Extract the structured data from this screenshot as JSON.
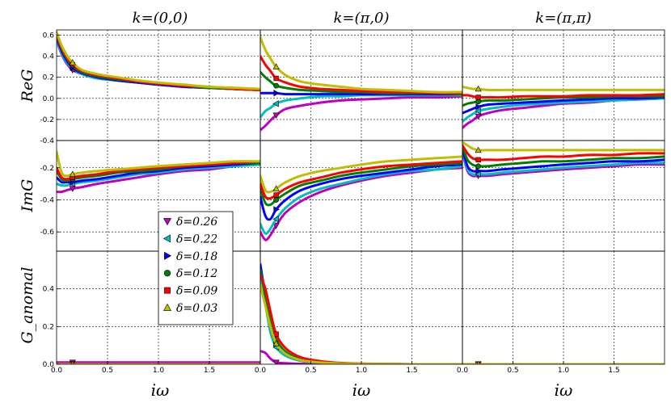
{
  "chart_data": {
    "type": "line",
    "description_units": "data units",
    "column_titles": [
      "k=(0,0)",
      "k=(π,0)",
      "k=(π,π)"
    ],
    "row_ylabels": [
      "ReG",
      "ImG",
      "G_anomal"
    ],
    "xlabel": "iω",
    "xlim": [
      0.0,
      2.0
    ],
    "xticks": [
      0.0,
      0.5,
      1.0,
      1.5
    ],
    "xtick_labels": [
      "0.0",
      "0.5",
      "1.0",
      "1.5"
    ],
    "rows": [
      {
        "name": "ReG",
        "ylim": [
          -0.4,
          0.65
        ],
        "yticks": [
          -0.4,
          -0.2,
          0.0,
          0.2,
          0.4,
          0.6
        ],
        "ytick_labels": [
          "-0.4",
          "-0.2",
          "0.0",
          "0.2",
          "0.4",
          "0.6"
        ]
      },
      {
        "name": "ImG",
        "ylim": [
          -0.72,
          -0.03
        ],
        "yticks": [
          -0.6,
          -0.4,
          -0.2
        ],
        "ytick_labels": [
          "-0.6",
          "-0.4",
          "-0.2"
        ]
      },
      {
        "name": "G_anomal",
        "ylim": [
          0.0,
          0.6
        ],
        "yticks": [
          0.0,
          0.2,
          0.4
        ],
        "ytick_labels": [
          "0.0",
          "0.2",
          "0.4"
        ]
      }
    ],
    "legend": {
      "position": "left, middle",
      "entries": [
        {
          "label": "δ=0.26",
          "color": "#bf00bf",
          "marker": "triangle-down"
        },
        {
          "label": "δ=0.22",
          "color": "#00bfbf",
          "marker": "triangle-left"
        },
        {
          "label": "δ=0.18",
          "color": "#0000ff",
          "marker": "triangle-right"
        },
        {
          "label": "δ=0.12",
          "color": "#008000",
          "marker": "circle"
        },
        {
          "label": "δ=0.09",
          "color": "#ff0000",
          "marker": "square"
        },
        {
          "label": "δ=0.03",
          "color": "#bfbf00",
          "marker": "triangle-up"
        }
      ]
    },
    "marker_x": 0.157,
    "x": [
      0.0,
      0.05,
      0.1,
      0.157,
      0.25,
      0.4,
      0.6,
      0.8,
      1.0,
      1.25,
      1.5,
      1.75,
      2.0
    ],
    "panels": [
      {
        "row": 0,
        "col": 0,
        "series": [
          [
            0.55,
            0.42,
            0.33,
            0.27,
            0.23,
            0.19,
            0.17,
            0.15,
            0.13,
            0.11,
            0.1,
            0.09,
            0.08
          ],
          [
            0.56,
            0.43,
            0.34,
            0.28,
            0.23,
            0.19,
            0.17,
            0.15,
            0.13,
            0.11,
            0.1,
            0.09,
            0.08
          ],
          [
            0.58,
            0.45,
            0.36,
            0.29,
            0.24,
            0.2,
            0.17,
            0.15,
            0.13,
            0.11,
            0.1,
            0.09,
            0.08
          ],
          [
            0.6,
            0.47,
            0.38,
            0.31,
            0.25,
            0.21,
            0.18,
            0.16,
            0.14,
            0.12,
            0.1,
            0.09,
            0.08
          ],
          [
            0.61,
            0.48,
            0.39,
            0.32,
            0.26,
            0.22,
            0.19,
            0.16,
            0.14,
            0.12,
            0.11,
            0.09,
            0.08
          ],
          [
            0.63,
            0.5,
            0.41,
            0.34,
            0.27,
            0.23,
            0.2,
            0.17,
            0.15,
            0.13,
            0.11,
            0.1,
            0.09
          ]
        ]
      },
      {
        "row": 0,
        "col": 1,
        "series": [
          [
            -0.3,
            -0.26,
            -0.21,
            -0.16,
            -0.1,
            -0.07,
            -0.04,
            -0.02,
            -0.01,
            0.0,
            0.01,
            0.01,
            0.02
          ],
          [
            -0.18,
            -0.12,
            -0.09,
            -0.05,
            -0.02,
            0.0,
            0.02,
            0.02,
            0.03,
            0.03,
            0.03,
            0.03,
            0.03
          ],
          [
            0.05,
            0.05,
            0.05,
            0.05,
            0.04,
            0.04,
            0.04,
            0.04,
            0.04,
            0.04,
            0.04,
            0.04,
            0.04
          ],
          [
            0.25,
            0.2,
            0.16,
            0.12,
            0.1,
            0.08,
            0.07,
            0.06,
            0.06,
            0.05,
            0.05,
            0.05,
            0.04
          ],
          [
            0.4,
            0.32,
            0.26,
            0.19,
            0.15,
            0.11,
            0.09,
            0.08,
            0.07,
            0.06,
            0.06,
            0.05,
            0.05
          ],
          [
            0.58,
            0.46,
            0.38,
            0.3,
            0.22,
            0.16,
            0.13,
            0.11,
            0.09,
            0.08,
            0.07,
            0.06,
            0.06
          ]
        ]
      },
      {
        "row": 0,
        "col": 2,
        "series": [
          [
            -0.28,
            -0.24,
            -0.21,
            -0.17,
            -0.14,
            -0.11,
            -0.09,
            -0.07,
            -0.05,
            -0.04,
            -0.02,
            -0.01,
            0.0
          ],
          [
            -0.22,
            -0.18,
            -0.15,
            -0.12,
            -0.1,
            -0.08,
            -0.06,
            -0.05,
            -0.04,
            -0.03,
            -0.02,
            -0.01,
            0.0
          ],
          [
            -0.14,
            -0.12,
            -0.1,
            -0.08,
            -0.06,
            -0.05,
            -0.04,
            -0.03,
            -0.02,
            -0.01,
            0.0,
            0.0,
            0.01
          ],
          [
            -0.07,
            -0.05,
            -0.04,
            -0.03,
            -0.02,
            -0.02,
            -0.01,
            0.0,
            0.01,
            0.01,
            0.02,
            0.02,
            0.02
          ],
          [
            0.03,
            0.03,
            0.02,
            0.01,
            0.01,
            0.01,
            0.02,
            0.02,
            0.02,
            0.03,
            0.03,
            0.03,
            0.04
          ],
          [
            0.11,
            0.1,
            0.09,
            0.09,
            0.08,
            0.08,
            0.08,
            0.08,
            0.08,
            0.08,
            0.08,
            0.08,
            0.08
          ]
        ]
      },
      {
        "row": 1,
        "col": 0,
        "series": [
          [
            -0.35,
            -0.35,
            -0.34,
            -0.33,
            -0.32,
            -0.3,
            -0.28,
            -0.26,
            -0.24,
            -0.22,
            -0.21,
            -0.19,
            -0.18
          ],
          [
            -0.3,
            -0.31,
            -0.31,
            -0.3,
            -0.29,
            -0.28,
            -0.26,
            -0.24,
            -0.23,
            -0.21,
            -0.2,
            -0.19,
            -0.18
          ],
          [
            -0.26,
            -0.29,
            -0.29,
            -0.29,
            -0.28,
            -0.27,
            -0.25,
            -0.23,
            -0.22,
            -0.2,
            -0.19,
            -0.18,
            -0.17
          ],
          [
            -0.22,
            -0.27,
            -0.28,
            -0.27,
            -0.26,
            -0.25,
            -0.23,
            -0.22,
            -0.21,
            -0.19,
            -0.18,
            -0.17,
            -0.17
          ],
          [
            -0.2,
            -0.26,
            -0.27,
            -0.26,
            -0.25,
            -0.24,
            -0.22,
            -0.21,
            -0.2,
            -0.19,
            -0.18,
            -0.17,
            -0.16
          ],
          [
            -0.1,
            -0.23,
            -0.25,
            -0.24,
            -0.23,
            -0.22,
            -0.21,
            -0.2,
            -0.19,
            -0.18,
            -0.17,
            -0.16,
            -0.16
          ]
        ]
      },
      {
        "row": 1,
        "col": 1,
        "series": [
          [
            -0.6,
            -0.65,
            -0.62,
            -0.56,
            -0.48,
            -0.41,
            -0.35,
            -0.31,
            -0.28,
            -0.25,
            -0.23,
            -0.21,
            -0.2
          ],
          [
            -0.55,
            -0.61,
            -0.58,
            -0.52,
            -0.45,
            -0.38,
            -0.33,
            -0.3,
            -0.27,
            -0.24,
            -0.22,
            -0.21,
            -0.19
          ],
          [
            -0.38,
            -0.5,
            -0.52,
            -0.46,
            -0.4,
            -0.34,
            -0.3,
            -0.27,
            -0.25,
            -0.23,
            -0.21,
            -0.19,
            -0.18
          ],
          [
            -0.33,
            -0.42,
            -0.43,
            -0.4,
            -0.36,
            -0.31,
            -0.28,
            -0.25,
            -0.23,
            -0.21,
            -0.19,
            -0.18,
            -0.17
          ],
          [
            -0.3,
            -0.38,
            -0.39,
            -0.37,
            -0.33,
            -0.29,
            -0.26,
            -0.23,
            -0.21,
            -0.19,
            -0.18,
            -0.17,
            -0.16
          ],
          [
            -0.25,
            -0.34,
            -0.35,
            -0.33,
            -0.29,
            -0.25,
            -0.22,
            -0.2,
            -0.18,
            -0.16,
            -0.15,
            -0.14,
            -0.13
          ]
        ]
      },
      {
        "row": 1,
        "col": 2,
        "series": [
          [
            -0.1,
            -0.22,
            -0.25,
            -0.25,
            -0.25,
            -0.24,
            -0.23,
            -0.22,
            -0.21,
            -0.2,
            -0.19,
            -0.18,
            -0.18
          ],
          [
            -0.09,
            -0.21,
            -0.24,
            -0.24,
            -0.24,
            -0.23,
            -0.22,
            -0.21,
            -0.2,
            -0.19,
            -0.18,
            -0.17,
            -0.17
          ],
          [
            -0.08,
            -0.19,
            -0.22,
            -0.22,
            -0.22,
            -0.21,
            -0.2,
            -0.19,
            -0.18,
            -0.17,
            -0.16,
            -0.16,
            -0.15
          ],
          [
            -0.07,
            -0.15,
            -0.18,
            -0.19,
            -0.19,
            -0.18,
            -0.17,
            -0.16,
            -0.16,
            -0.15,
            -0.14,
            -0.14,
            -0.13
          ],
          [
            -0.06,
            -0.11,
            -0.14,
            -0.15,
            -0.15,
            -0.15,
            -0.14,
            -0.13,
            -0.13,
            -0.12,
            -0.12,
            -0.11,
            -0.11
          ],
          [
            -0.04,
            -0.06,
            -0.08,
            -0.09,
            -0.09,
            -0.09,
            -0.09,
            -0.09,
            -0.09,
            -0.09,
            -0.09,
            -0.09,
            -0.09
          ]
        ]
      },
      {
        "row": 2,
        "col": 0,
        "series": [
          [
            0.01,
            0.01,
            0.01,
            0.01,
            0.01,
            0.01,
            0.01,
            0.01,
            0.01,
            0.01,
            0.01,
            0.01,
            0.01
          ],
          [
            0.0,
            0.0,
            0.0,
            0.0,
            0.0,
            0.0,
            0.0,
            0.0,
            0.0,
            0.0,
            0.0,
            0.0,
            0.0
          ],
          [
            0.0,
            0.0,
            0.0,
            0.0,
            0.0,
            0.0,
            0.0,
            0.0,
            0.0,
            0.0,
            0.0,
            0.0,
            0.0
          ],
          [
            0.0,
            0.0,
            0.0,
            0.0,
            0.0,
            0.0,
            0.0,
            0.0,
            0.0,
            0.0,
            0.0,
            0.0,
            0.0
          ],
          [
            0.0,
            0.0,
            0.0,
            0.0,
            0.0,
            0.0,
            0.0,
            0.0,
            0.0,
            0.0,
            0.0,
            0.0,
            0.0
          ],
          [
            0.0,
            0.0,
            0.0,
            0.0,
            0.0,
            0.0,
            0.0,
            0.0,
            0.0,
            0.0,
            0.0,
            0.0,
            0.0
          ]
        ]
      },
      {
        "row": 2,
        "col": 1,
        "series": [
          [
            0.07,
            0.06,
            0.03,
            0.01,
            0.005,
            0.002,
            0.001,
            0.0,
            0.0,
            0.0,
            0.0,
            0.0,
            0.0
          ],
          [
            0.48,
            0.32,
            0.17,
            0.09,
            0.045,
            0.018,
            0.007,
            0.003,
            0.001,
            0.0,
            0.0,
            0.0,
            0.0
          ],
          [
            0.53,
            0.36,
            0.2,
            0.11,
            0.055,
            0.022,
            0.009,
            0.004,
            0.002,
            0.001,
            0.0,
            0.0,
            0.0
          ],
          [
            0.5,
            0.37,
            0.23,
            0.13,
            0.066,
            0.027,
            0.011,
            0.005,
            0.002,
            0.001,
            0.0,
            0.0,
            0.0
          ],
          [
            0.47,
            0.4,
            0.28,
            0.16,
            0.085,
            0.037,
            0.016,
            0.007,
            0.003,
            0.001,
            0.0,
            0.0,
            0.0
          ],
          [
            0.42,
            0.31,
            0.2,
            0.11,
            0.055,
            0.022,
            0.009,
            0.004,
            0.002,
            0.001,
            0.0,
            0.0,
            0.0
          ]
        ]
      },
      {
        "row": 2,
        "col": 2,
        "series": [
          [
            0.0,
            0.0,
            0.0,
            0.0,
            0.0,
            0.0,
            0.0,
            0.0,
            0.0,
            0.0,
            0.0,
            0.0,
            0.0
          ],
          [
            0.0,
            0.0,
            0.0,
            0.0,
            0.0,
            0.0,
            0.0,
            0.0,
            0.0,
            0.0,
            0.0,
            0.0,
            0.0
          ],
          [
            0.0,
            0.0,
            0.0,
            0.0,
            0.0,
            0.0,
            0.0,
            0.0,
            0.0,
            0.0,
            0.0,
            0.0,
            0.0
          ],
          [
            0.0,
            0.0,
            0.0,
            0.0,
            0.0,
            0.0,
            0.0,
            0.0,
            0.0,
            0.0,
            0.0,
            0.0,
            0.0
          ],
          [
            0.0,
            0.0,
            0.0,
            0.0,
            0.0,
            0.0,
            0.0,
            0.0,
            0.0,
            0.0,
            0.0,
            0.0,
            0.0
          ],
          [
            0.0,
            0.0,
            0.0,
            0.0,
            0.0,
            0.0,
            0.0,
            0.0,
            0.0,
            0.0,
            0.0,
            0.0,
            0.0
          ]
        ]
      }
    ]
  }
}
